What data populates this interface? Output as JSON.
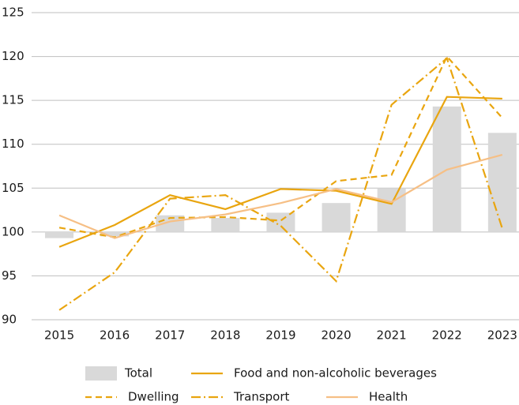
{
  "chart_data": {
    "type": "bar_line",
    "categories": [
      "2015",
      "2016",
      "2017",
      "2018",
      "2019",
      "2020",
      "2021",
      "2022",
      "2023"
    ],
    "series": [
      {
        "name": "Total",
        "kind": "bar",
        "color": "#d9d9d9",
        "values": [
          99.3,
          99.5,
          101.9,
          101.6,
          102.2,
          103.3,
          105.0,
          114.3,
          111.3
        ]
      },
      {
        "name": "Food and non-alcoholic beverages",
        "kind": "line",
        "dash": "solid",
        "color": "#e9a50f",
        "values": [
          98.3,
          100.8,
          104.2,
          102.6,
          104.9,
          104.7,
          103.2,
          115.4,
          115.2
        ]
      },
      {
        "name": "Dwelling",
        "kind": "line",
        "dash": "dashed",
        "color": "#e9a50f",
        "values": [
          100.5,
          99.4,
          101.6,
          101.7,
          101.3,
          105.8,
          106.5,
          120.0,
          113.0
        ]
      },
      {
        "name": "Transport",
        "kind": "line",
        "dash": "dashdot",
        "color": "#e9a50f",
        "values": [
          91.1,
          95.4,
          103.8,
          104.2,
          100.7,
          94.4,
          114.5,
          119.8,
          100.4
        ]
      },
      {
        "name": "Health",
        "kind": "line",
        "dash": "solid",
        "color": "#f6bf85",
        "values": [
          101.9,
          99.3,
          101.2,
          102.0,
          103.3,
          104.9,
          103.4,
          107.1,
          108.8
        ]
      }
    ],
    "ylim": [
      90,
      125
    ],
    "yticks": [
      90,
      95,
      100,
      105,
      110,
      115,
      120,
      125
    ],
    "grid": true,
    "legend": "bottom"
  }
}
